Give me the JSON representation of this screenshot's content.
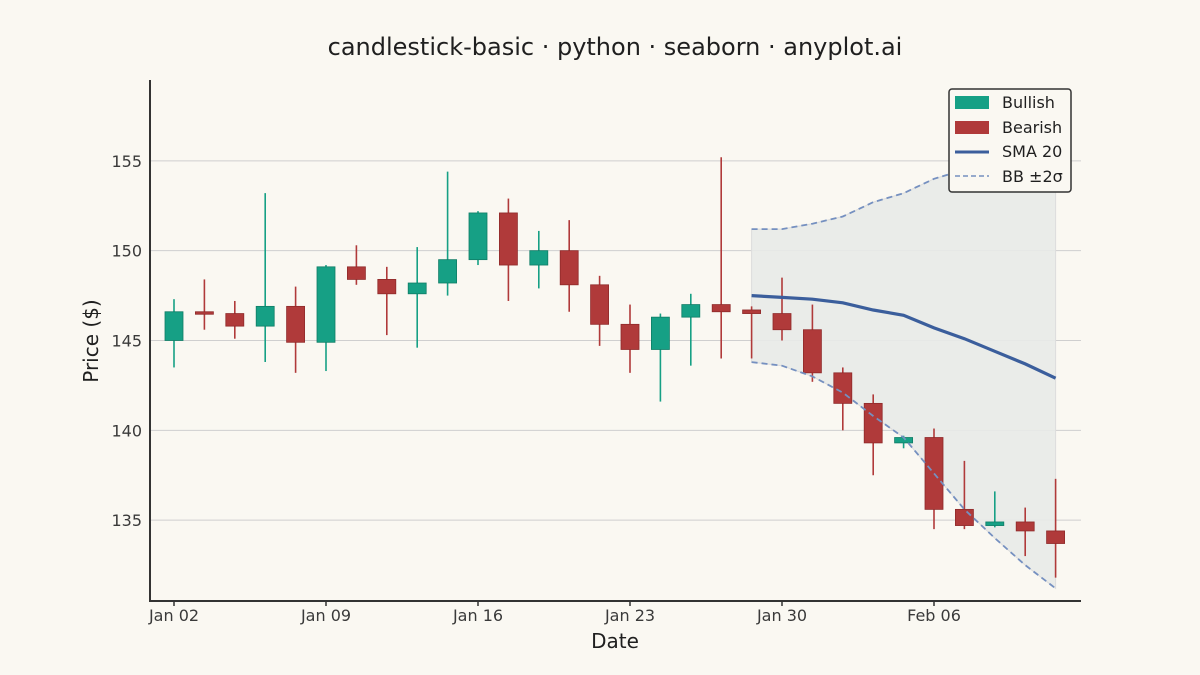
{
  "chart_data": {
    "type": "candlestick",
    "title": "candlestick-basic · python · seaborn · anyplot.ai",
    "xlabel": "Date",
    "ylabel": "Price ($)",
    "ylim": [
      130.5,
      159.5
    ],
    "yticks": [
      135,
      140,
      145,
      150,
      155
    ],
    "xticks": [
      {
        "label": "Jan 02",
        "index": 0
      },
      {
        "label": "Jan 09",
        "index": 5
      },
      {
        "label": "Jan 16",
        "index": 10
      },
      {
        "label": "Jan 23",
        "index": 15
      },
      {
        "label": "Jan 30",
        "index": 20
      },
      {
        "label": "Feb 06",
        "index": 25
      }
    ],
    "grid": "horizontal",
    "legend_position": "top-right",
    "colors": {
      "bullish": "#16A085",
      "bearish": "#B03A3A",
      "sma": "#3B5E9C",
      "band": "#7590C0",
      "band_fill": "#E8EAE8"
    },
    "legend": {
      "bullish": "Bullish",
      "bearish": "Bearish",
      "sma": "SMA 20",
      "bb": "BB ±2σ"
    },
    "candles": [
      {
        "open": 145.0,
        "high": 147.3,
        "low": 143.5,
        "close": 146.6
      },
      {
        "open": 146.6,
        "high": 148.4,
        "low": 145.6,
        "close": 146.5
      },
      {
        "open": 146.5,
        "high": 147.2,
        "low": 145.1,
        "close": 145.8
      },
      {
        "open": 145.8,
        "high": 153.2,
        "low": 143.8,
        "close": 146.9
      },
      {
        "open": 146.9,
        "high": 148.0,
        "low": 143.2,
        "close": 144.9
      },
      {
        "open": 144.9,
        "high": 149.2,
        "low": 143.3,
        "close": 149.1
      },
      {
        "open": 149.1,
        "high": 150.3,
        "low": 148.1,
        "close": 148.4
      },
      {
        "open": 148.4,
        "high": 149.1,
        "low": 145.3,
        "close": 147.6
      },
      {
        "open": 147.6,
        "high": 150.2,
        "low": 144.6,
        "close": 148.2
      },
      {
        "open": 148.2,
        "high": 154.4,
        "low": 147.5,
        "close": 149.5
      },
      {
        "open": 149.5,
        "high": 152.2,
        "low": 149.2,
        "close": 152.1
      },
      {
        "open": 152.1,
        "high": 152.9,
        "low": 147.2,
        "close": 149.2
      },
      {
        "open": 149.2,
        "high": 151.1,
        "low": 147.9,
        "close": 150.0
      },
      {
        "open": 150.0,
        "high": 151.7,
        "low": 146.6,
        "close": 148.1
      },
      {
        "open": 148.1,
        "high": 148.6,
        "low": 144.7,
        "close": 145.9
      },
      {
        "open": 145.9,
        "high": 147.0,
        "low": 143.2,
        "close": 144.5
      },
      {
        "open": 144.5,
        "high": 146.5,
        "low": 141.6,
        "close": 146.3
      },
      {
        "open": 146.3,
        "high": 147.6,
        "low": 143.6,
        "close": 147.0
      },
      {
        "open": 147.0,
        "high": 155.2,
        "low": 144.0,
        "close": 146.6
      },
      {
        "open": 146.7,
        "high": 146.9,
        "low": 144.0,
        "close": 146.5
      },
      {
        "open": 146.5,
        "high": 148.5,
        "low": 145.0,
        "close": 145.6
      },
      {
        "open": 145.6,
        "high": 147.0,
        "low": 142.7,
        "close": 143.2
      },
      {
        "open": 143.2,
        "high": 143.5,
        "low": 140.0,
        "close": 141.5
      },
      {
        "open": 141.5,
        "high": 142.0,
        "low": 137.5,
        "close": 139.3
      },
      {
        "open": 139.3,
        "high": 139.7,
        "low": 139.0,
        "close": 139.6
      },
      {
        "open": 139.6,
        "high": 140.1,
        "low": 134.5,
        "close": 135.6
      },
      {
        "open": 135.6,
        "high": 138.3,
        "low": 134.5,
        "close": 134.7
      },
      {
        "open": 134.7,
        "high": 136.6,
        "low": 134.6,
        "close": 134.9
      },
      {
        "open": 134.9,
        "high": 135.7,
        "low": 133.0,
        "close": 134.4
      },
      {
        "open": 134.4,
        "high": 137.3,
        "low": 131.8,
        "close": 133.7
      }
    ],
    "indicators": {
      "start_index": 19,
      "sma20": [
        147.5,
        147.4,
        147.3,
        147.1,
        146.7,
        146.4,
        145.7,
        145.1,
        144.4,
        143.7,
        142.9
      ],
      "bb_upper": [
        151.2,
        151.2,
        151.5,
        151.9,
        152.7,
        153.2,
        154.0,
        154.5,
        154.9,
        155.0,
        155.0
      ],
      "bb_lower": [
        143.8,
        143.6,
        143.0,
        142.1,
        140.8,
        139.6,
        137.6,
        135.6,
        134.0,
        132.5,
        131.2
      ]
    }
  }
}
